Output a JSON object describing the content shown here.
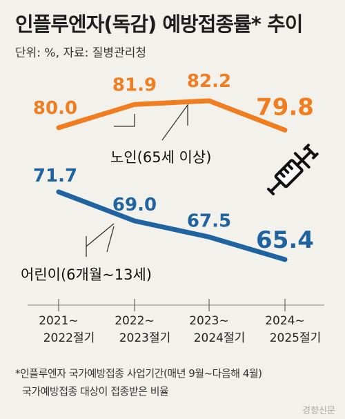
{
  "header": {
    "title": "인플루엔자(독감) 예방접종률* 추이",
    "subtitle": "단위: %, 자료: 질병관리청"
  },
  "chart_data": {
    "type": "line",
    "categories": [
      [
        "2021~",
        "2022절기"
      ],
      [
        "2022~",
        "2023절기"
      ],
      [
        "2023~",
        "2024절기"
      ],
      [
        "2024~",
        "2025절기"
      ]
    ],
    "series": [
      {
        "name": "노인(65세 이상)",
        "values": [
          80.0,
          81.9,
          82.2,
          79.8
        ],
        "color": "#f07d1f"
      },
      {
        "name": "어린이(6개월~13세)",
        "values": [
          71.7,
          69.0,
          67.5,
          65.4
        ],
        "color": "#1f64a0"
      }
    ],
    "value_labels": [
      [
        "80.0",
        "81.9",
        "82.2",
        "79.8"
      ],
      [
        "71.7",
        "69.0",
        "67.5",
        "65.4"
      ]
    ],
    "ylim": [
      60,
      85
    ],
    "grid": false,
    "icon": "syringe-icon"
  },
  "footnotes": {
    "line1": "*인플루엔자 국가예방접종 사업기간(매년 9월~다음해 4월)",
    "line2": "국가예방접종 대상이 접종받은 비율"
  },
  "credit": "경향신문"
}
